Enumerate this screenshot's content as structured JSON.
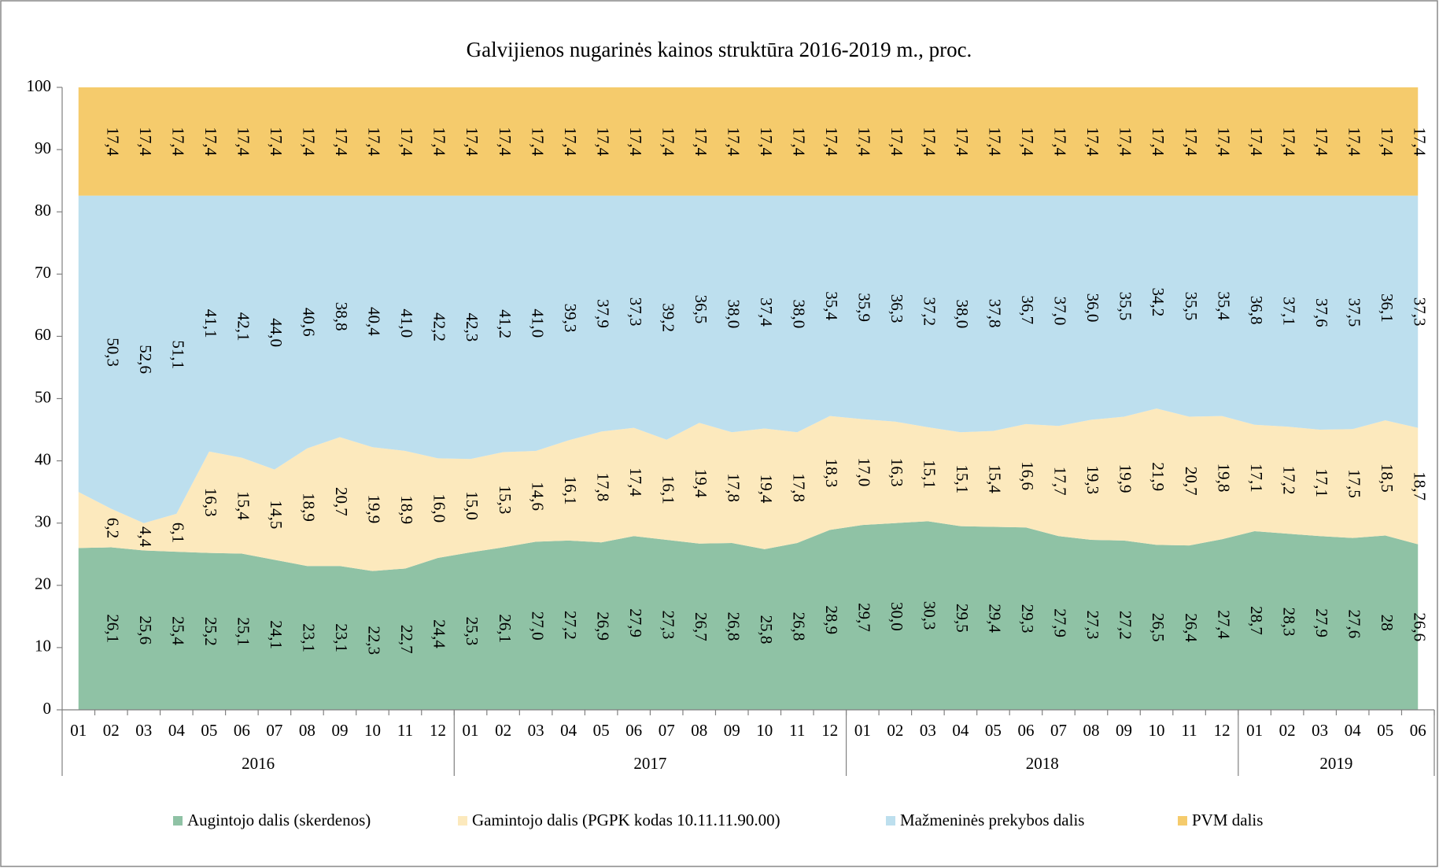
{
  "chart_data": {
    "type": "stacked_area",
    "title": "Galvijienos nugarinės kainos struktūra 2016-2019 m., proc.",
    "categories": [
      "01",
      "02",
      "03",
      "04",
      "05",
      "06",
      "07",
      "08",
      "09",
      "10",
      "11",
      "12",
      "01",
      "02",
      "03",
      "04",
      "05",
      "06",
      "07",
      "08",
      "09",
      "10",
      "11",
      "12",
      "01",
      "02",
      "03",
      "04",
      "05",
      "06",
      "07",
      "08",
      "09",
      "10",
      "11",
      "12",
      "01",
      "02",
      "03",
      "04",
      "05",
      "06"
    ],
    "years": [
      "2016",
      "2017",
      "2018",
      "2019"
    ],
    "ylim": [
      0,
      100
    ],
    "yticks": [
      0,
      10,
      20,
      30,
      40,
      50,
      60,
      70,
      80,
      90,
      100
    ],
    "grid": false,
    "legend": "bottom",
    "series": [
      {
        "name": "Augintojo dalis (skerdenos)",
        "color": "#8fc2a5",
        "values": [
          26,
          26.1,
          25.6,
          25.4,
          25.2,
          25.1,
          24.1,
          23.1,
          23.1,
          22.3,
          22.7,
          24.4,
          25.3,
          26.1,
          27.0,
          27.2,
          26.9,
          27.9,
          27.3,
          26.7,
          26.8,
          25.8,
          26.8,
          28.9,
          29.7,
          30.0,
          30.3,
          29.5,
          29.4,
          29.3,
          27.9,
          27.3,
          27.2,
          26.5,
          26.4,
          27.4,
          28.7,
          28.3,
          27.9,
          27.6,
          28,
          26.6
        ],
        "value_labels": [
          null,
          "26,1",
          "25,6",
          "25,4",
          "25,2",
          "25,1",
          "24,1",
          "23,1",
          "23,1",
          "22,3",
          "22,7",
          "24,4",
          "25,3",
          "26,1",
          "27,0",
          "27,2",
          "26,9",
          "27,9",
          "27,3",
          "26,7",
          "26,8",
          "25,8",
          "26,8",
          "28,9",
          "29,7",
          "30,0",
          "30,3",
          "29,5",
          "29,4",
          "29,3",
          "27,9",
          "27,3",
          "27,2",
          "26,5",
          "26,4",
          "27,4",
          "28,7",
          "28,3",
          "27,9",
          "27,6",
          "28",
          "26,6"
        ]
      },
      {
        "name": "Gamintojo dalis (PGPK kodas 10.11.11.90.00)",
        "color": "#fce9bd",
        "values": [
          9,
          6.2,
          4.4,
          6.1,
          16.3,
          15.4,
          14.5,
          18.9,
          20.7,
          19.9,
          18.9,
          16.0,
          15.0,
          15.3,
          14.6,
          16.1,
          17.8,
          17.4,
          16.1,
          19.4,
          17.8,
          19.4,
          17.8,
          18.3,
          17.0,
          16.3,
          15.1,
          15.1,
          15.4,
          16.6,
          17.7,
          19.3,
          19.9,
          21.9,
          20.7,
          19.8,
          17.1,
          17.2,
          17.1,
          17.5,
          18.5,
          18.7
        ],
        "value_labels": [
          null,
          "6,2",
          "4,4",
          "6,1",
          "16,3",
          "15,4",
          "14,5",
          "18,9",
          "20,7",
          "19,9",
          "18,9",
          "16,0",
          "15,0",
          "15,3",
          "14,6",
          "16,1",
          "17,8",
          "17,4",
          "16,1",
          "19,4",
          "17,8",
          "19,4",
          "17,8",
          "18,3",
          "17,0",
          "16,3",
          "15,1",
          "15,1",
          "15,4",
          "16,6",
          "17,7",
          "19,3",
          "19,9",
          "21,9",
          "20,7",
          "19,8",
          "17,1",
          "17,2",
          "17,1",
          "17,5",
          "18,5",
          "18,7"
        ]
      },
      {
        "name": "Mažmeninės prekybos dalis",
        "color": "#bddfee",
        "values": [
          47.6,
          50.3,
          52.6,
          51.1,
          41.1,
          42.1,
          44.0,
          40.6,
          38.8,
          40.4,
          41.0,
          42.2,
          42.3,
          41.2,
          41.0,
          39.3,
          37.9,
          37.3,
          39.2,
          36.5,
          38.0,
          37.4,
          38.0,
          35.4,
          35.9,
          36.3,
          37.2,
          38.0,
          37.8,
          36.7,
          37.0,
          36.0,
          35.5,
          34.2,
          35.5,
          35.4,
          36.8,
          37.1,
          37.6,
          37.5,
          36.1,
          37.3
        ],
        "value_labels": [
          null,
          "50,3",
          "52,6",
          "51,1",
          "41,1",
          "42,1",
          "44,0",
          "40,6",
          "38,8",
          "40,4",
          "41,0",
          "42,2",
          "42,3",
          "41,2",
          "41,0",
          "39,3",
          "37,9",
          "37,3",
          "39,2",
          "36,5",
          "38,0",
          "37,4",
          "38,0",
          "35,4",
          "35,9",
          "36,3",
          "37,2",
          "38,0",
          "37,8",
          "36,7",
          "37,0",
          "36,0",
          "35,5",
          "34,2",
          "35,5",
          "35,4",
          "36,8",
          "37,1",
          "37,6",
          "37,5",
          "36,1",
          "37,3"
        ]
      },
      {
        "name": "PVM dalis",
        "color": "#f5cb6c",
        "values": [
          17.4,
          17.4,
          17.4,
          17.4,
          17.4,
          17.4,
          17.4,
          17.4,
          17.4,
          17.4,
          17.4,
          17.4,
          17.4,
          17.4,
          17.4,
          17.4,
          17.4,
          17.4,
          17.4,
          17.4,
          17.4,
          17.4,
          17.4,
          17.4,
          17.4,
          17.4,
          17.4,
          17.4,
          17.4,
          17.4,
          17.4,
          17.4,
          17.4,
          17.4,
          17.4,
          17.4,
          17.4,
          17.4,
          17.4,
          17.4,
          17.4,
          17.4
        ],
        "value_labels": [
          null,
          "17,4",
          "17,4",
          "17,4",
          "17,4",
          "17,4",
          "17,4",
          "17,4",
          "17,4",
          "17,4",
          "17,4",
          "17,4",
          "17,4",
          "17,4",
          "17,4",
          "17,4",
          "17,4",
          "17,4",
          "17,4",
          "17,4",
          "17,4",
          "17,4",
          "17,4",
          "17,4",
          "17,4",
          "17,4",
          "17,4",
          "17,4",
          "17,4",
          "17,4",
          "17,4",
          "17,4",
          "17,4",
          "17,4",
          "17,4",
          "17,4",
          "17,4",
          "17,4",
          "17,4",
          "17,4",
          "17,4",
          "17,4"
        ]
      }
    ]
  }
}
